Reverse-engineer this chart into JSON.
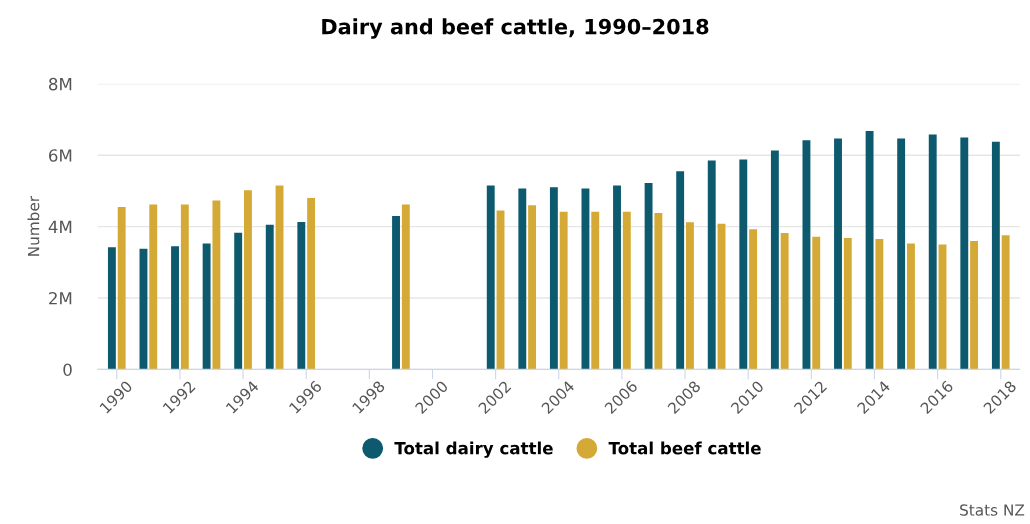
{
  "chart_data": {
    "type": "bar",
    "title": "Dairy and beef cattle, 1990–2018",
    "ylabel": "Number",
    "categories": [
      "1990",
      null,
      "1992",
      null,
      "1994",
      null,
      "1996",
      null,
      "1998",
      null,
      "2000",
      null,
      "2002",
      null,
      "2004",
      null,
      "2006",
      null,
      "2008",
      null,
      "2010",
      null,
      "2012",
      null,
      "2014",
      null,
      "2016",
      null,
      "2018"
    ],
    "series": [
      {
        "name": "Total dairy cattle",
        "color": "#0d5a6e",
        "values": [
          3420000,
          3380000,
          3450000,
          3530000,
          3830000,
          4050000,
          4130000,
          null,
          null,
          4300000,
          null,
          null,
          5150000,
          5070000,
          5100000,
          5070000,
          5150000,
          5220000,
          5550000,
          5850000,
          5880000,
          6130000,
          6420000,
          6470000,
          6680000,
          6470000,
          6580000,
          6500000,
          6380000
        ]
      },
      {
        "name": "Total beef cattle",
        "color": "#d4a935",
        "values": [
          4550000,
          4620000,
          4620000,
          4730000,
          5020000,
          5150000,
          4800000,
          null,
          null,
          4620000,
          null,
          null,
          4450000,
          4600000,
          4420000,
          4420000,
          4420000,
          4380000,
          4120000,
          4080000,
          3930000,
          3820000,
          3720000,
          3680000,
          3650000,
          3530000,
          3500000,
          3600000,
          3760000
        ]
      }
    ],
    "ylim": [
      0,
      8000000
    ],
    "yticks": [
      {
        "value": 0,
        "label": "0"
      },
      {
        "value": 2000000,
        "label": "2M"
      },
      {
        "value": 4000000,
        "label": "4M"
      },
      {
        "value": 6000000,
        "label": "6M"
      },
      {
        "value": 8000000,
        "label": "8M"
      }
    ],
    "grid": "y",
    "legend": "bottom",
    "annotations": [
      "Stats NZ"
    ]
  }
}
